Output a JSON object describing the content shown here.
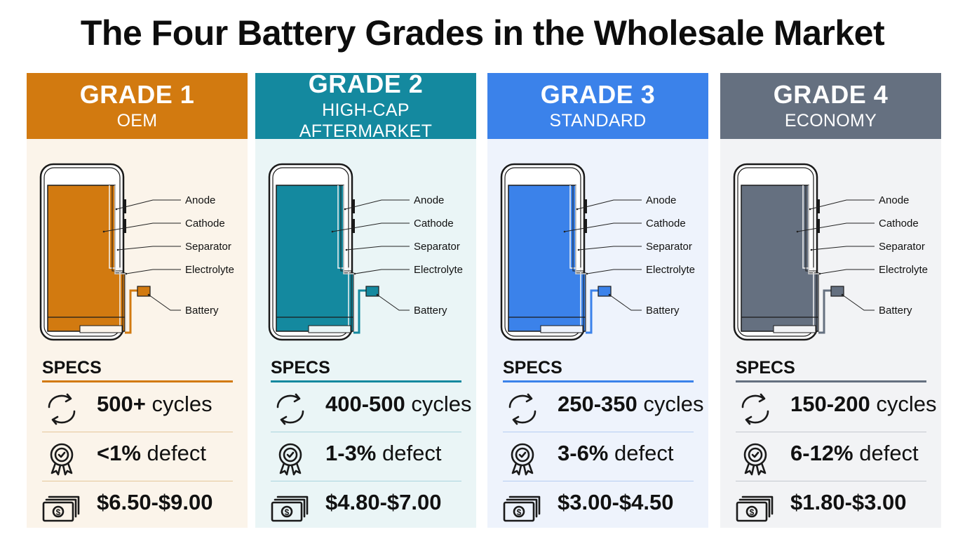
{
  "title": "The Four Battery Grades in the Wholesale Market",
  "labels": {
    "anode": "Anode",
    "cathode": "Cathode",
    "separator": "Separator",
    "electrolyte": "Electrolyte",
    "battery": "Battery"
  },
  "cards": [
    {
      "grade": "GRADE 1",
      "subtitle": "OEM",
      "specs_label": "SPECS",
      "cycles_value": "500+",
      "cycles_unit": " cycles",
      "defect_value": "<1%",
      "defect_unit": " defect",
      "price": "$6.50-$9.00",
      "accent": "#D27A10",
      "bg": "#FBF4EA",
      "line": "#E5C79A"
    },
    {
      "grade": "GRADE 2",
      "subtitle": "HIGH-CAP AFTERMARKET",
      "specs_label": "SPECS",
      "cycles_value": "400-500",
      "cycles_unit": " cycles",
      "defect_value": "1-3%",
      "defect_unit": " defect",
      "price": "$4.80-$7.00",
      "accent": "#14899F",
      "bg": "#EAF5F6",
      "line": "#A9D5DD"
    },
    {
      "grade": "GRADE 3",
      "subtitle": "STANDARD",
      "specs_label": "SPECS",
      "cycles_value": "250-350",
      "cycles_unit": " cycles",
      "defect_value": "3-6%",
      "defect_unit": " defect",
      "price": "$3.00-$4.50",
      "accent": "#3B82EA",
      "bg": "#EEF3FC",
      "line": "#B5CDF2"
    },
    {
      "grade": "GRADE 4",
      "subtitle": "ECONOMY",
      "specs_label": "SPECS",
      "cycles_value": "150-200",
      "cycles_unit": " cycles",
      "defect_value": "6-12%",
      "defect_unit": " defect",
      "price": "$1.80-$3.00",
      "accent": "#657080",
      "bg": "#F2F3F5",
      "line": "#C4C8CF"
    }
  ]
}
